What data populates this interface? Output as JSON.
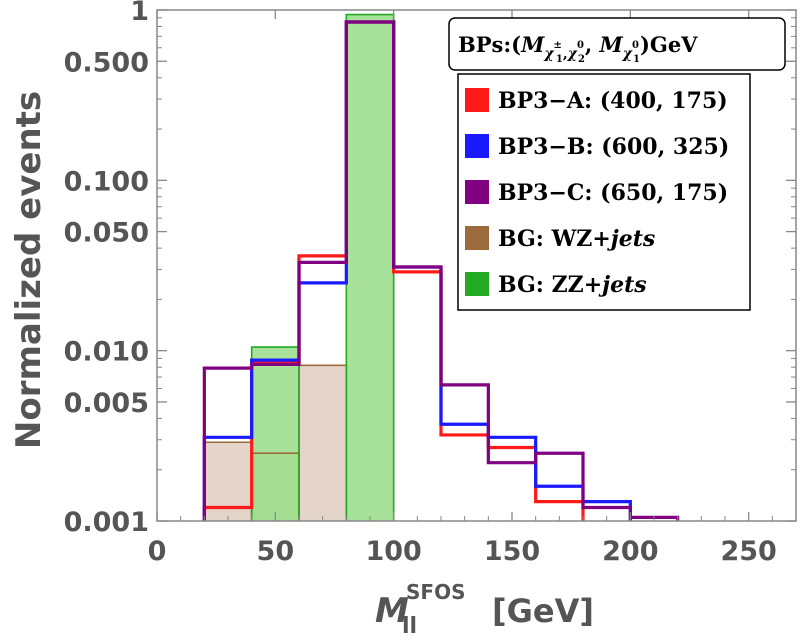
{
  "chart_data": {
    "type": "histogram",
    "title": "",
    "xlabel": {
      "symbol": "M",
      "subscript": "ll",
      "superscript": "SFOS",
      "unit": "[GeV]"
    },
    "ylabel": "Normalized events",
    "xlim": [
      0,
      270
    ],
    "ylim": [
      0.001,
      1
    ],
    "yscale": "log",
    "x_ticks": [
      0,
      50,
      100,
      150,
      200,
      250
    ],
    "x_tick_labels": [
      "0",
      "50",
      "100",
      "150",
      "200",
      "250"
    ],
    "y_ticks": [
      0.001,
      0.005,
      0.01,
      0.05,
      0.1,
      0.5,
      1
    ],
    "y_tick_labels": [
      "0.001",
      "0.005",
      "0.010",
      "0.050",
      "0.100",
      "0.500",
      "1"
    ],
    "bin_edges": [
      20,
      40,
      60,
      80,
      100,
      120,
      140,
      160,
      180,
      200,
      220
    ],
    "grid": false,
    "legend_position": "top-right",
    "legend_title": {
      "prefix": "BPs:(",
      "m1": "M",
      "m1_sub": "χ",
      "m1_sub_sup": "±",
      "m1_sub_sub": "1",
      "sep1": ",",
      "m1_sub2": "χ",
      "m1_sub2_sup": "0",
      "m1_sub2_sub": "2",
      "sep2": ", ",
      "m2": "M",
      "m2_sub": "χ",
      "m2_sub_sup": "0",
      "m2_sub_sub": "1",
      "suffix": ")GeV"
    },
    "series": [
      {
        "name": "BP3−A: (400, 175)",
        "style": "step",
        "color": "#ff1a1a",
        "values": [
          0.0012,
          0.0085,
          0.036,
          0.85,
          0.029,
          0.0032,
          0.0027,
          0.0013,
          null,
          null
        ]
      },
      {
        "name": "BP3−B: (600, 325)",
        "style": "step",
        "color": "#1a1aff",
        "values": [
          0.0031,
          0.0088,
          0.025,
          0.85,
          0.031,
          0.0037,
          0.0031,
          0.0016,
          0.0013,
          null
        ]
      },
      {
        "name": "BP3−C: (650, 175)",
        "style": "step",
        "color": "#800080",
        "values": [
          0.0079,
          0.0083,
          0.033,
          0.85,
          0.031,
          0.0063,
          0.0022,
          0.0025,
          0.0012,
          0.00105
        ]
      },
      {
        "name": "BG: WZ+",
        "name_italic": "jets",
        "style": "filled",
        "color": "#9c6b3c",
        "fill": "#e0cdbf",
        "values": [
          0.0029,
          0.0025,
          0.0082,
          null,
          null,
          null,
          null,
          null,
          null,
          null
        ]
      },
      {
        "name": "BG: ZZ+",
        "name_italic": "jets",
        "style": "filled",
        "color": "#22aa22",
        "fill": "#99dd88",
        "values": [
          null,
          0.0105,
          null,
          0.94,
          null,
          null,
          null,
          null,
          null,
          null
        ]
      }
    ],
    "legend_swatches": [
      "#ff1a1a",
      "#1a1aff",
      "#800080",
      "#9c6b3c",
      "#22aa22"
    ]
  }
}
